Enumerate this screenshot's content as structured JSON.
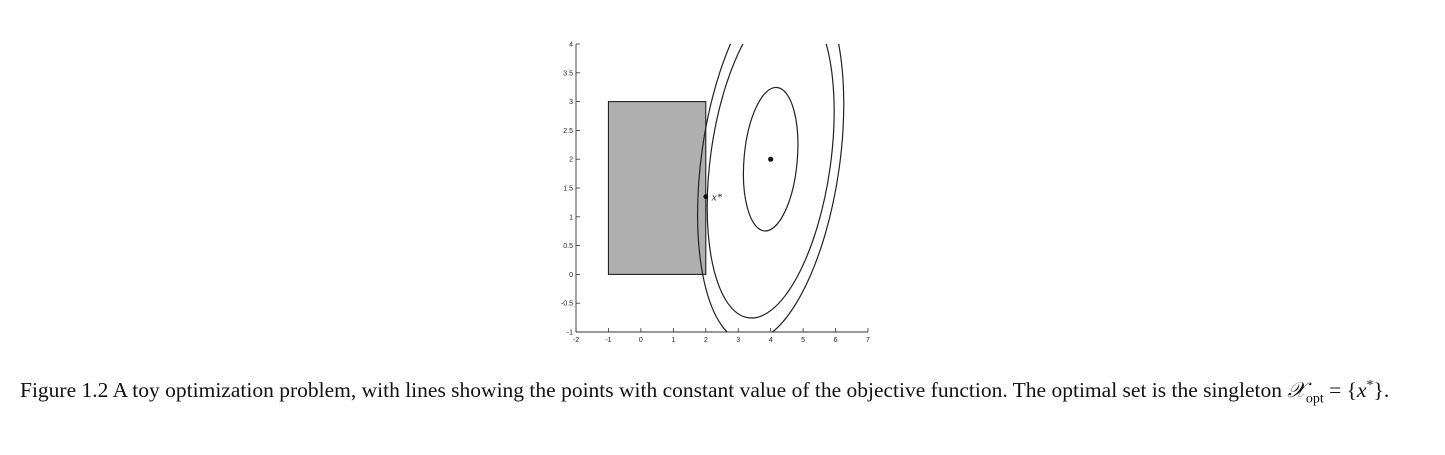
{
  "chart_data": {
    "type": "contour",
    "xlim": [
      -2,
      7
    ],
    "ylim": [
      -1,
      4
    ],
    "x_ticks": [
      "-2",
      "-1",
      "0",
      "1",
      "2",
      "3",
      "4",
      "5",
      "6",
      "7"
    ],
    "y_ticks": [
      "-1",
      "-0.5",
      "0",
      "0.5",
      "1",
      "1.5",
      "2",
      "2.5",
      "3",
      "3.5",
      "4"
    ],
    "feasible_set": {
      "x": [
        -1,
        2
      ],
      "y": [
        0,
        3
      ],
      "color": "#b0b0b0"
    },
    "optimum_unconstrained": {
      "x": 4,
      "y": 2
    },
    "optimal_point": {
      "x": 2,
      "y": 1.35,
      "label": "x*"
    },
    "contours": [
      {
        "center": [
          4,
          2
        ],
        "semi_axis_x": 0.82,
        "semi_axis_y": 1.25,
        "tilt_deg": -5
      },
      {
        "center": [
          4,
          2
        ],
        "semi_axis_x": 1.85,
        "semi_axis_y": 2.78,
        "tilt_deg": -8
      },
      {
        "center": [
          4,
          2
        ],
        "semi_axis_x": 2.13,
        "semi_axis_y": 3.2,
        "tilt_deg": -8
      }
    ],
    "grid": false
  },
  "caption": {
    "label": "Figure 1.2",
    "text": "A toy optimization problem, with lines showing the points with constant value of the objective function. The optimal set is the singleton",
    "set_symbol": "𝒳",
    "set_subscript": "opt",
    "equals": "=",
    "set_value_open": "{",
    "set_value_var": "x",
    "set_value_sup": "*",
    "set_value_close": "}."
  }
}
